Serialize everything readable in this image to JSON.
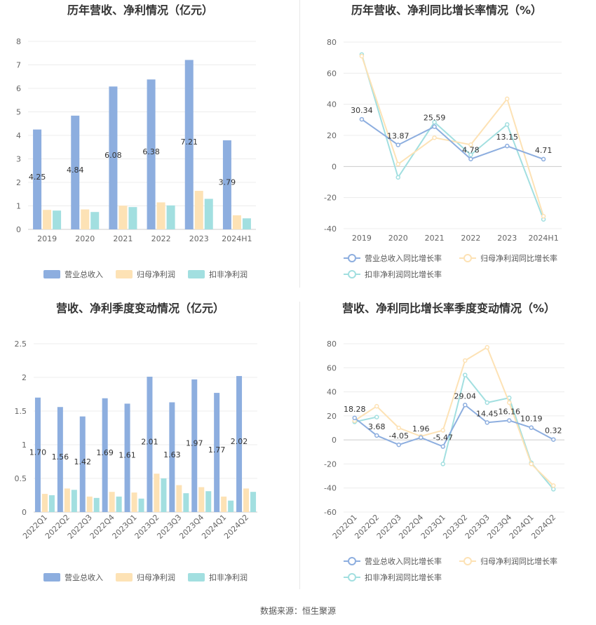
{
  "source": "数据来源：恒生聚源",
  "chart_data": [
    {
      "type": "bar",
      "title": "历年营收、净利情况（亿元）",
      "categories": [
        "2019",
        "2020",
        "2021",
        "2022",
        "2023",
        "2024H1"
      ],
      "ylim": [
        0,
        8
      ],
      "yticks": [
        "0",
        "1",
        "2",
        "3",
        "4",
        "5",
        "6",
        "7",
        "8"
      ],
      "grid": true,
      "legend_position": "bottom",
      "series": [
        {
          "name": "营业总收入",
          "color": "#8daedf",
          "values": [
            4.25,
            4.84,
            6.08,
            6.38,
            7.21,
            3.79
          ],
          "labels": [
            "4.25",
            "4.84",
            "6.08",
            "6.38",
            "7.21",
            "3.79"
          ]
        },
        {
          "name": "归母净利润",
          "color": "#fde2b5",
          "values": [
            0.83,
            0.85,
            1.01,
            1.15,
            1.64,
            0.6
          ]
        },
        {
          "name": "扣非净利润",
          "color": "#a2dfe0",
          "values": [
            0.8,
            0.74,
            0.95,
            1.02,
            1.3,
            0.47
          ]
        }
      ]
    },
    {
      "type": "line",
      "title": "历年营收、净利同比增长率情况（%）",
      "categories": [
        "2019",
        "2020",
        "2021",
        "2022",
        "2023",
        "2024H1"
      ],
      "ylim": [
        -40,
        80
      ],
      "yticks": [
        "-40",
        "-20",
        "0",
        "20",
        "40",
        "60",
        "80"
      ],
      "grid": true,
      "legend_position": "bottom",
      "series": [
        {
          "name": "营业总收入同比增长率",
          "color": "#8daedf",
          "values": [
            30.34,
            13.87,
            25.59,
            4.78,
            13.15,
            4.71
          ],
          "labels": [
            "30.34",
            "13.87",
            "25.59",
            "4.78",
            "13.15",
            "4.71"
          ]
        },
        {
          "name": "归母净利润同比增长率",
          "color": "#fde2b5",
          "values": [
            71,
            1.5,
            18.5,
            14,
            43.5,
            -32
          ]
        },
        {
          "name": "扣非净利润同比增长率",
          "color": "#a2dfe0",
          "values": [
            72,
            -7,
            28.5,
            7.5,
            27,
            -34
          ]
        }
      ]
    },
    {
      "type": "bar",
      "title": "营收、净利季度变动情况（亿元）",
      "categories": [
        "2022Q1",
        "2022Q2",
        "2022Q3",
        "2022Q4",
        "2023Q1",
        "2023Q2",
        "2023Q3",
        "2023Q4",
        "2024Q1",
        "2024Q2"
      ],
      "ylim": [
        0,
        2.5
      ],
      "yticks": [
        "0",
        "0.5",
        "1",
        "1.5",
        "2",
        "2.5"
      ],
      "grid": true,
      "legend_position": "bottom",
      "series": [
        {
          "name": "营业总收入",
          "color": "#8daedf",
          "values": [
            1.7,
            1.56,
            1.42,
            1.69,
            1.61,
            2.01,
            1.63,
            1.97,
            1.77,
            2.02
          ],
          "labels": [
            "1.70",
            "1.56",
            "1.42",
            "1.69",
            "1.61",
            "2.01",
            "1.63",
            "1.97",
            "1.77",
            "2.02"
          ]
        },
        {
          "name": "归母净利润",
          "color": "#fde2b5",
          "values": [
            0.27,
            0.35,
            0.23,
            0.3,
            0.29,
            0.57,
            0.4,
            0.37,
            0.23,
            0.35
          ]
        },
        {
          "name": "扣非净利润",
          "color": "#a2dfe0",
          "values": [
            0.25,
            0.33,
            0.21,
            0.23,
            0.2,
            0.5,
            0.28,
            0.31,
            0.17,
            0.3
          ]
        }
      ]
    },
    {
      "type": "line",
      "title": "营收、净利同比增长率季度变动情况（%）",
      "categories": [
        "2022Q1",
        "2022Q2",
        "2022Q3",
        "2022Q4",
        "2023Q1",
        "2023Q2",
        "2023Q3",
        "2023Q4",
        "2024Q1",
        "2024Q2"
      ],
      "ylim": [
        -60,
        80
      ],
      "yticks": [
        "-60",
        "-40",
        "-20",
        "0",
        "20",
        "40",
        "60",
        "80"
      ],
      "grid": true,
      "legend_position": "bottom",
      "series": [
        {
          "name": "营业总收入同比增长率",
          "color": "#8daedf",
          "values": [
            18.28,
            3.68,
            -4.05,
            1.96,
            -5.47,
            29.04,
            14.45,
            16.16,
            10.19,
            0.32
          ],
          "labels": [
            "18.28",
            "3.68",
            "-4.05",
            "1.96",
            "-5.47",
            "29.04",
            "14.45",
            "16.16",
            "10.19",
            "0.32"
          ]
        },
        {
          "name": "归母净利润同比增长率",
          "color": "#fde2b5",
          "values": [
            16,
            28,
            10,
            3,
            8,
            66,
            77,
            31,
            -20,
            -38
          ]
        },
        {
          "name": "扣非净利润同比增长率",
          "color": "#a2dfe0",
          "values": [
            15,
            19,
            null,
            null,
            -20,
            54,
            31,
            35,
            -19,
            -41
          ]
        }
      ]
    }
  ]
}
